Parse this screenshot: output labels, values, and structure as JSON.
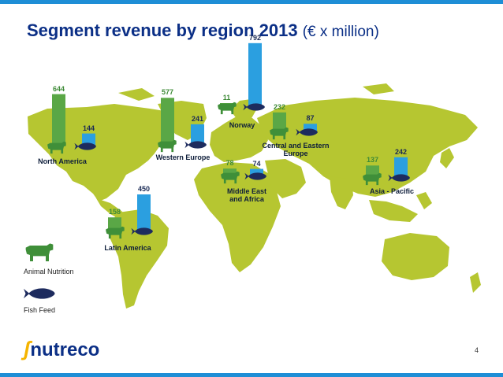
{
  "title_main": "Segment revenue by region 2013",
  "title_unit": "(€ x million)",
  "page_number": "4",
  "logo_text": "nutreco",
  "legend": {
    "animal": "Animal Nutrition",
    "fish": "Fish Feed"
  },
  "colors": {
    "map": "#b6c631",
    "animal_bar": "#5aa746",
    "fish_bar": "#2b9fe0",
    "cow": "#3f8f39",
    "fish_icon": "#1d2b5e",
    "accent": "#1e8ed6"
  },
  "chart_data": {
    "type": "bar",
    "categories": [
      "North America",
      "Western Europe",
      "Norway",
      "Central and Eastern Europe",
      "Middle East and Africa",
      "Latin America",
      "Asia - Pacific"
    ],
    "series": [
      {
        "name": "Animal Nutrition",
        "values": [
          644,
          577,
          11,
          232,
          78,
          158,
          137
        ]
      },
      {
        "name": "Fish Feed",
        "values": [
          144,
          241,
          792,
          87,
          74,
          450,
          242
        ]
      }
    ]
  }
}
